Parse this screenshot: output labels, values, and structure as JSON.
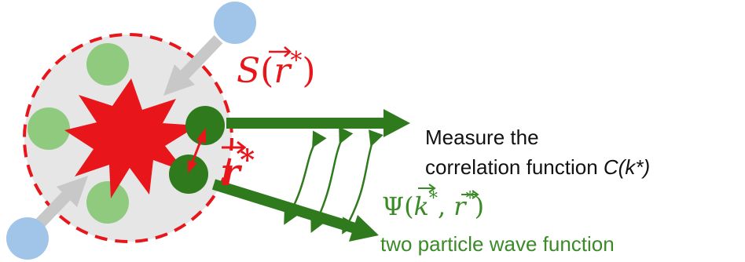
{
  "colors": {
    "red": "#e8161b",
    "green_dark": "#2e7a1c",
    "green_light": "#8fca7f",
    "blue": "#a1c4e9",
    "gray_fill": "#e6e6e6",
    "gray_arrow": "#c8c8c8",
    "text_black": "#111111",
    "text_green": "#3a8a28"
  },
  "labels": {
    "source_func": "S",
    "source_arg": "r",
    "sep_vec": "r",
    "star": "*",
    "measure_line1": "Measure the",
    "measure_line2": "correlation function ",
    "measure_func": "C(k*)",
    "wave_func": "Ψ",
    "wave_arg_k": "k",
    "wave_arg_r": "r",
    "wave_caption": "two particle wave function"
  }
}
